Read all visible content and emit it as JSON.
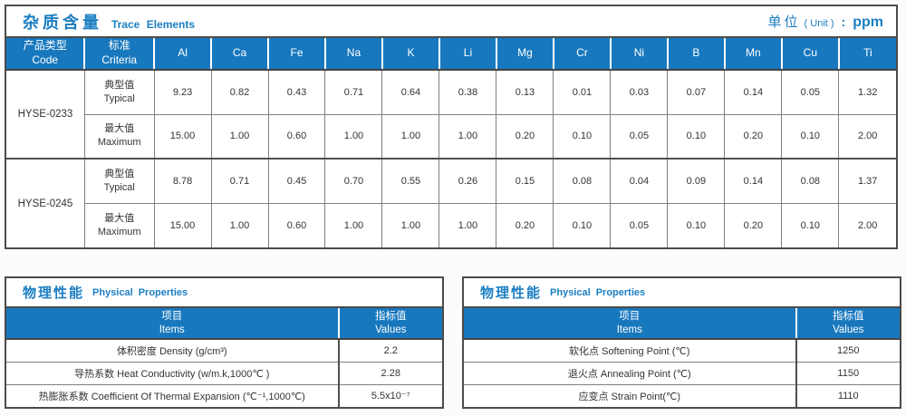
{
  "colors": {
    "header_blue": "#1878be",
    "title_blue": "#1b7ec2",
    "border_dark": "#4b4b4b",
    "grid_gray": "#808080",
    "text_dark": "#333333"
  },
  "trace_table": {
    "title_zh": "杂质含量",
    "title_en": "Trace Elements",
    "unit_zh": "单位",
    "unit_paren": "( Unit )",
    "unit_colon": ":",
    "unit_value": "ppm",
    "col1": {
      "zh": "产品类型",
      "en": "Code"
    },
    "col2": {
      "zh": "标准",
      "en": "Criteria"
    },
    "elements": [
      "Al",
      "Ca",
      "Fe",
      "Na",
      "K",
      "Li",
      "Mg",
      "Cr",
      "Ni",
      "B",
      "Mn",
      "Cu",
      "Ti"
    ],
    "products": [
      {
        "code": "HYSE-0233",
        "rows": [
          {
            "criteria_zh": "典型值",
            "criteria_en": "Typical",
            "values": [
              "9.23",
              "0.82",
              "0.43",
              "0.71",
              "0.64",
              "0.38",
              "0.13",
              "0.01",
              "0.03",
              "0.07",
              "0.14",
              "0.05",
              "1.32"
            ]
          },
          {
            "criteria_zh": "最大值",
            "criteria_en": "Maximum",
            "values": [
              "15.00",
              "1.00",
              "0.60",
              "1.00",
              "1.00",
              "1.00",
              "0.20",
              "0.10",
              "0.05",
              "0.10",
              "0.20",
              "0.10",
              "2.00"
            ]
          }
        ]
      },
      {
        "code": "HYSE-0245",
        "rows": [
          {
            "criteria_zh": "典型值",
            "criteria_en": "Typical",
            "values": [
              "8.78",
              "0.71",
              "0.45",
              "0.70",
              "0.55",
              "0.26",
              "0.15",
              "0.08",
              "0.04",
              "0.09",
              "0.14",
              "0.08",
              "1.37"
            ]
          },
          {
            "criteria_zh": "最大值",
            "criteria_en": "Maximum",
            "values": [
              "15.00",
              "1.00",
              "0.60",
              "1.00",
              "1.00",
              "1.00",
              "0.20",
              "0.10",
              "0.05",
              "0.10",
              "0.20",
              "0.10",
              "2.00"
            ]
          }
        ]
      }
    ]
  },
  "physical_tables": [
    {
      "title_zh": "物理性能",
      "title_en": "Physical Properties",
      "col_item_zh": "项目",
      "col_item_en": "Items",
      "col_value_zh": "指标值",
      "col_value_en": "Values",
      "rows": [
        {
          "item": "体积密度 Density (g/cm³)",
          "value": "2.2"
        },
        {
          "item": "导热系数 Heat Conductivity (w/m.k,1000℃ )",
          "value": "2.28"
        },
        {
          "item": "热膨胀系数 Coefficient Of Thermal Expansion (℃⁻¹,1000℃)",
          "value": "5.5x10⁻⁷"
        }
      ]
    },
    {
      "title_zh": "物理性能",
      "title_en": "Physical Properties",
      "col_item_zh": "项目",
      "col_item_en": "Items",
      "col_value_zh": "指标值",
      "col_value_en": "Values",
      "rows": [
        {
          "item": "软化点 Softening Point (℃)",
          "value": "1250"
        },
        {
          "item": "退火点 Annealing Point (℃)",
          "value": "1150"
        },
        {
          "item": "应变点 Strain Point(℃)",
          "value": "1110"
        }
      ]
    }
  ]
}
